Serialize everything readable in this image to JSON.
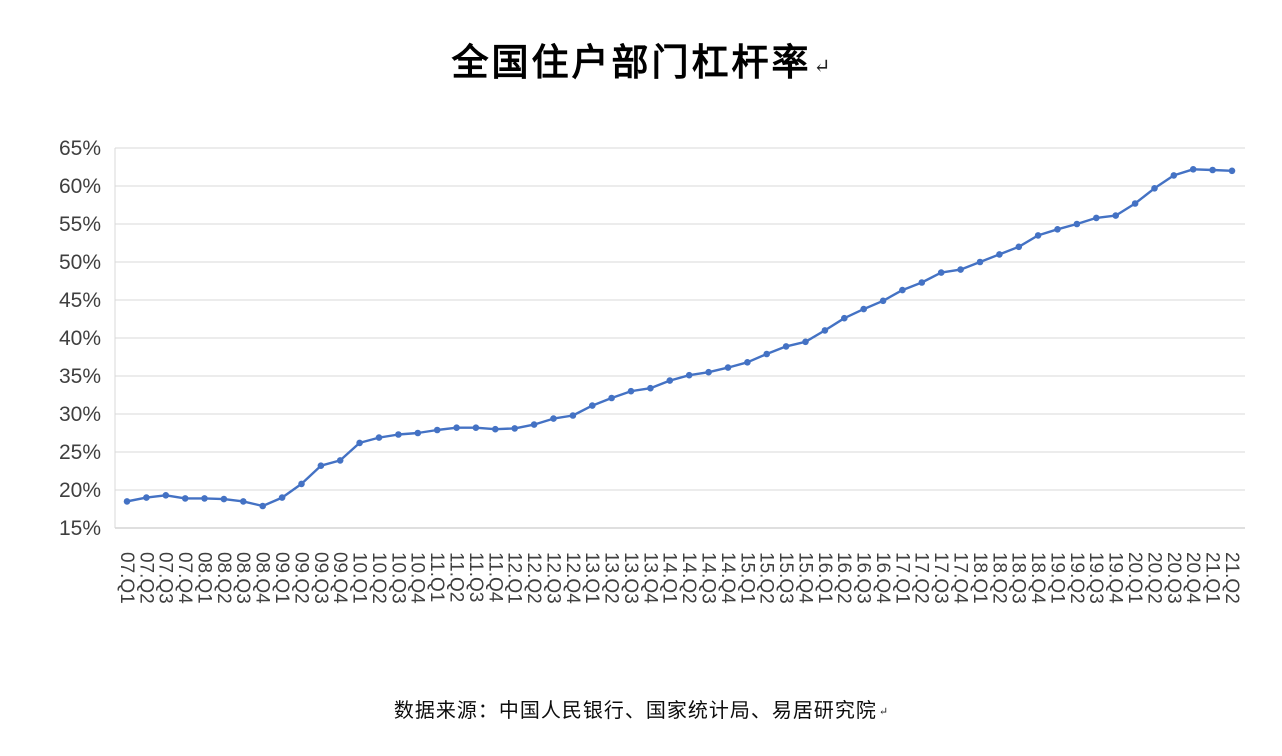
{
  "title": {
    "text": "全国住户部门杠杆率",
    "mark": "↵"
  },
  "source_note": {
    "text": "数据来源：中国人民银行、国家统计局、易居研究院",
    "mark": "↵"
  },
  "chart_data": {
    "type": "line",
    "title": "全国住户部门杠杆率",
    "categories": [
      "07.Q1",
      "07.Q2",
      "07.Q3",
      "07.Q4",
      "08.Q1",
      "08.Q2",
      "08.Q3",
      "08.Q4",
      "09.Q1",
      "09.Q2",
      "09.Q3",
      "09.Q4",
      "10.Q1",
      "10.Q2",
      "10.Q3",
      "10.Q4",
      "11.Q1",
      "11.Q2",
      "11.Q3",
      "11.Q4",
      "12.Q1",
      "12.Q2",
      "12.Q3",
      "12.Q4",
      "13.Q1",
      "13.Q2",
      "13.Q3",
      "13.Q4",
      "14.Q1",
      "14.Q2",
      "14.Q3",
      "14.Q4",
      "15.Q1",
      "15.Q2",
      "15.Q3",
      "15.Q4",
      "16.Q1",
      "16.Q2",
      "16.Q3",
      "16.Q4",
      "17.Q1",
      "17.Q2",
      "17.Q3",
      "17.Q4",
      "18.Q1",
      "18.Q2",
      "18.Q3",
      "18.Q4",
      "19.Q1",
      "19.Q2",
      "19.Q3",
      "19.Q4",
      "20.Q1",
      "20.Q2",
      "20.Q3",
      "20.Q4",
      "21.Q1",
      "21.Q2"
    ],
    "values": [
      18.5,
      19.0,
      19.3,
      18.9,
      18.9,
      18.8,
      18.5,
      17.9,
      19.0,
      20.8,
      23.2,
      23.9,
      26.2,
      26.9,
      27.3,
      27.5,
      27.9,
      28.2,
      28.2,
      28.0,
      28.1,
      28.6,
      29.4,
      29.8,
      31.1,
      32.1,
      33.0,
      33.4,
      34.4,
      35.1,
      35.5,
      36.1,
      36.8,
      37.9,
      38.9,
      39.5,
      41.0,
      42.6,
      43.8,
      44.9,
      46.3,
      47.3,
      48.6,
      49.0,
      50.0,
      51.0,
      52.0,
      53.5,
      54.3,
      55.0,
      55.8,
      56.1,
      57.7,
      59.7,
      61.4,
      62.2,
      62.1,
      62.0
    ],
    "y_ticks": [
      "15%",
      "20%",
      "25%",
      "30%",
      "35%",
      "40%",
      "45%",
      "50%",
      "55%",
      "60%",
      "65%"
    ],
    "ylim": [
      15,
      65
    ],
    "xlabel": "",
    "ylabel": "",
    "grid": true,
    "legend": "none",
    "line_color": "#4472C4",
    "marker": "circle"
  }
}
